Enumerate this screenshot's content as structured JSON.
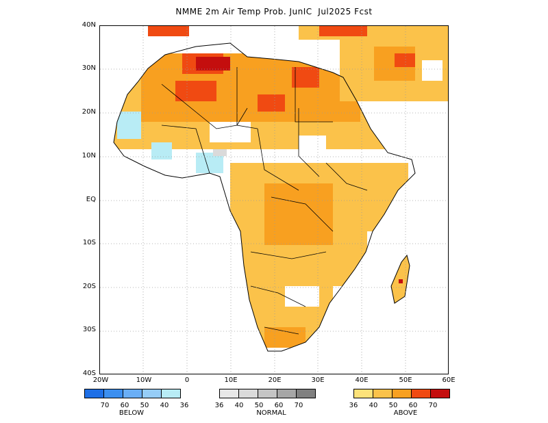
{
  "title": "NMME 2m Air Temp Prob. JunIC  Jul2025 Fcst",
  "lat_labels": [
    "40N",
    "30N",
    "20N",
    "10N",
    "EQ",
    "10S",
    "20S",
    "30S",
    "40S"
  ],
  "lon_labels": [
    "20W",
    "10W",
    "0",
    "10E",
    "20E",
    "30E",
    "40E",
    "50E",
    "60E"
  ],
  "legend": {
    "below": {
      "name": "BELOW",
      "ticks": [
        "70",
        "60",
        "50",
        "40",
        "36"
      ],
      "colors": [
        "#1e6fe6",
        "#3c8ff0",
        "#6aaef5",
        "#96cdf7",
        "#b8ecf5"
      ]
    },
    "normal": {
      "name": "NORMAL",
      "ticks": [
        "36",
        "40",
        "50",
        "60",
        "70"
      ],
      "colors": [
        "#e8e8e8",
        "#dadada",
        "#c4c4c4",
        "#a6a6a6",
        "#808080"
      ]
    },
    "above": {
      "name": "ABOVE",
      "ticks": [
        "36",
        "40",
        "50",
        "60",
        "70"
      ],
      "colors": [
        "#fde27a",
        "#fbc24a",
        "#f8a020",
        "#f04a12",
        "#c40e0e"
      ]
    }
  }
}
